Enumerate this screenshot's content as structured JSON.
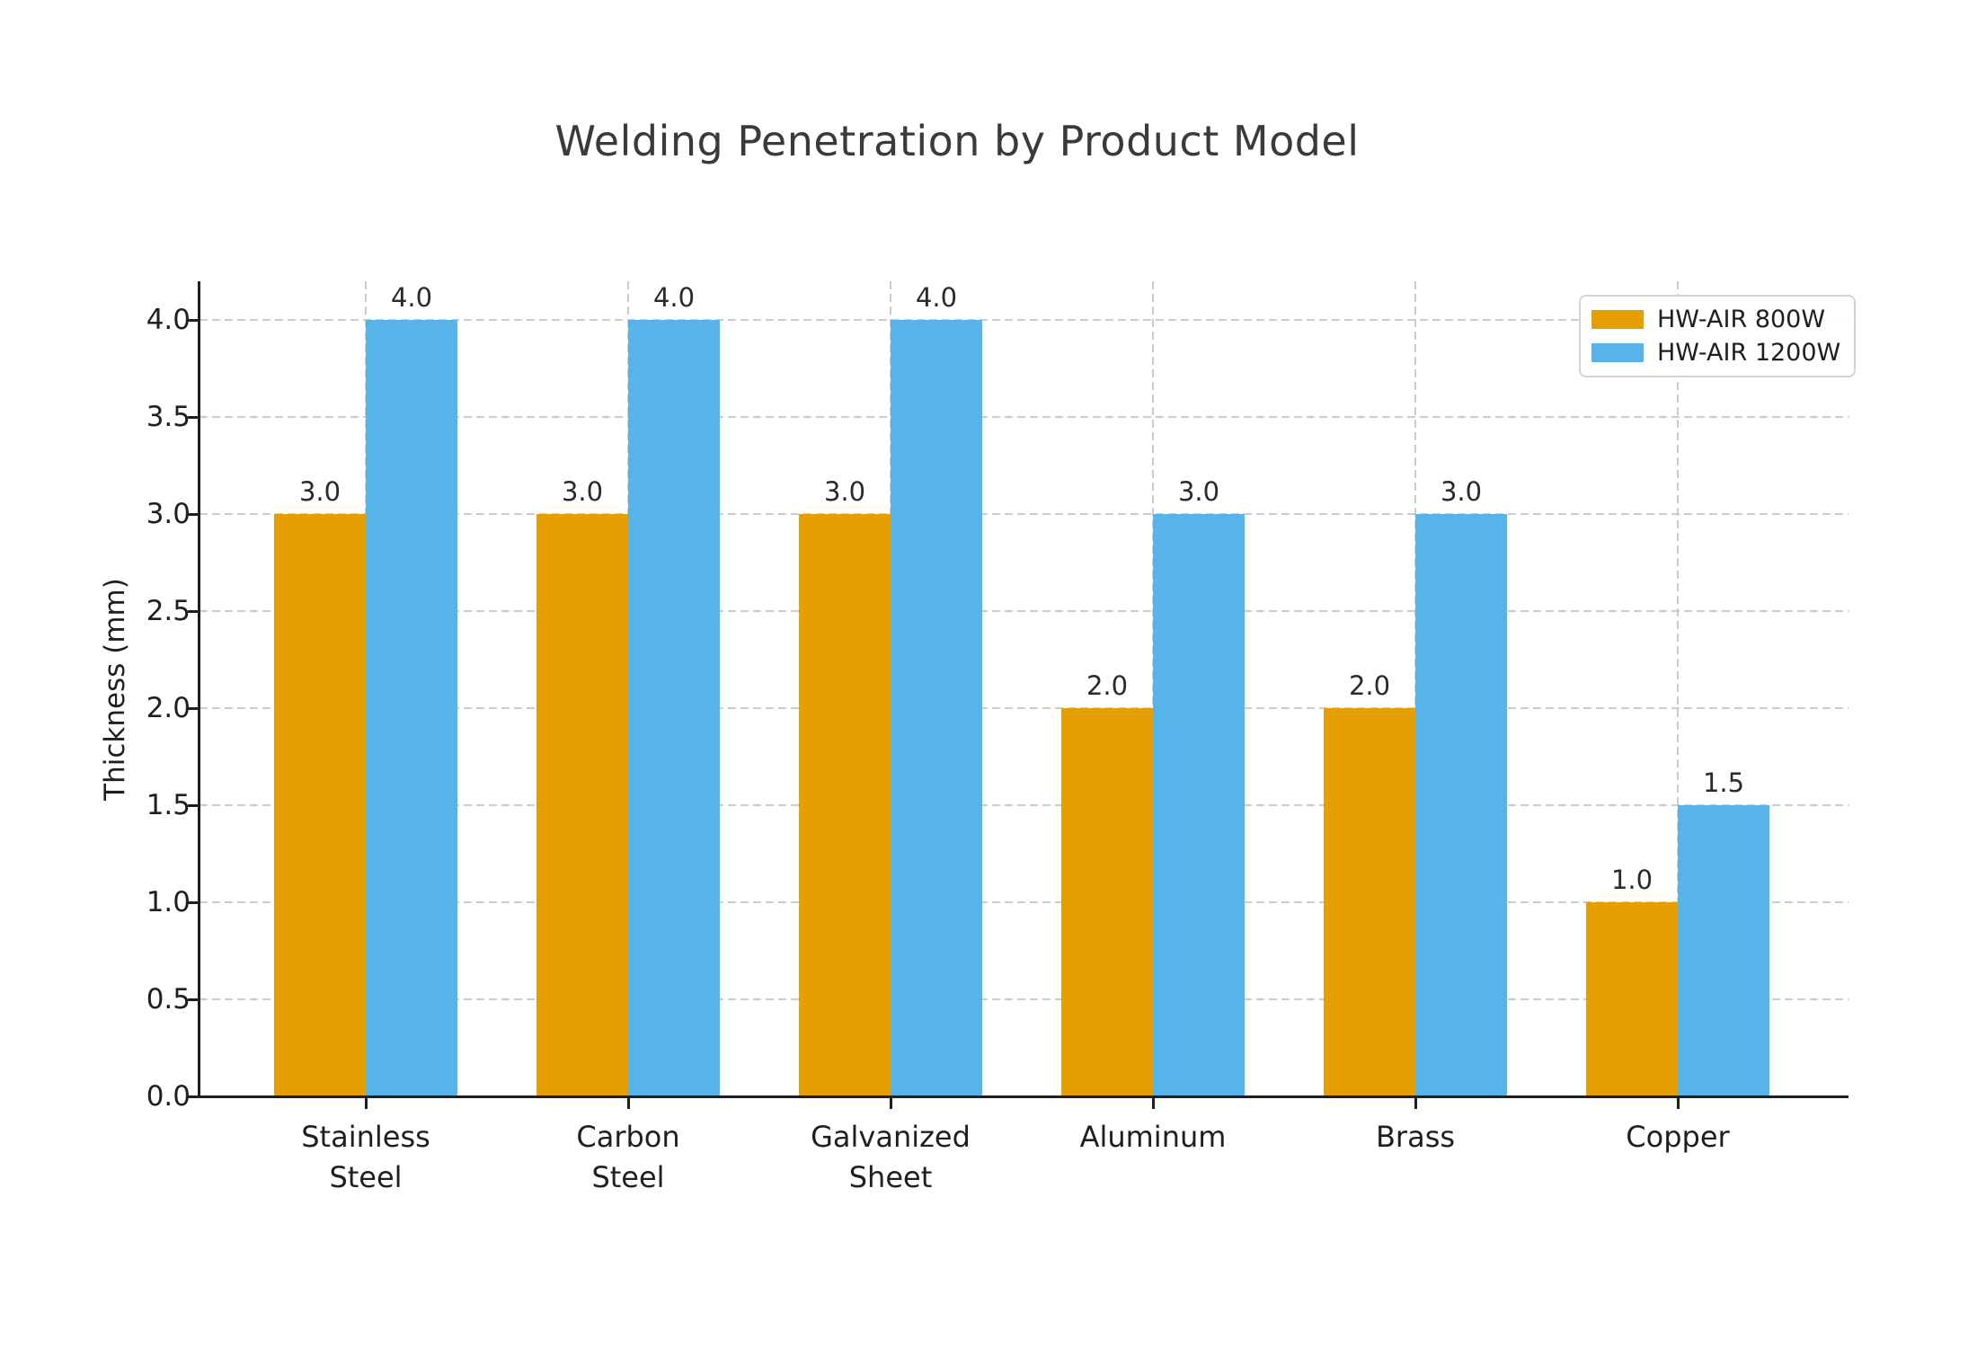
{
  "title": "Welding Penetration by Product Model",
  "chart_data": {
    "type": "bar",
    "title": "Welding Penetration by Product Model",
    "xlabel": "",
    "ylabel": "Thickness (mm)",
    "categories": [
      "Stainless\nSteel",
      "Carbon\nSteel",
      "Galvanized\nSheet",
      "Aluminum",
      "Brass",
      "Copper"
    ],
    "series": [
      {
        "name": "HW-AIR 800W",
        "color": "#E69F00",
        "values": [
          3.0,
          3.0,
          3.0,
          2.0,
          2.0,
          1.0
        ]
      },
      {
        "name": "HW-AIR 1200W",
        "color": "#56B4E9",
        "values": [
          4.0,
          4.0,
          4.0,
          3.0,
          3.0,
          1.5
        ]
      }
    ],
    "bar_value_labels": [
      [
        "3.0",
        "3.0",
        "3.0",
        "2.0",
        "2.0",
        "1.0"
      ],
      [
        "4.0",
        "4.0",
        "4.0",
        "3.0",
        "3.0",
        "1.5"
      ]
    ],
    "ylim": [
      0.0,
      4.2
    ],
    "yticks": [
      0.0,
      0.5,
      1.0,
      1.5,
      2.0,
      2.5,
      3.0,
      3.5,
      4.0
    ],
    "ytick_labels": [
      "0.0",
      "0.5",
      "1.0",
      "1.5",
      "2.0",
      "2.5",
      "3.0",
      "3.5",
      "4.0"
    ],
    "grid": "dashed, horizontal at yticks and vertical at category centers",
    "legend_position": "upper right"
  },
  "legend": {
    "items": [
      {
        "label": "HW-AIR 800W",
        "color": "#E69F00"
      },
      {
        "label": "HW-AIR 1200W",
        "color": "#56B4E9"
      }
    ]
  },
  "colors": {
    "series_800w": "#E69F00",
    "series_1200w": "#56B4E9",
    "grid": "#cbcbcb",
    "axis": "#1f1f1f",
    "title_text": "#3a3a3a",
    "background": "#ffffff"
  }
}
